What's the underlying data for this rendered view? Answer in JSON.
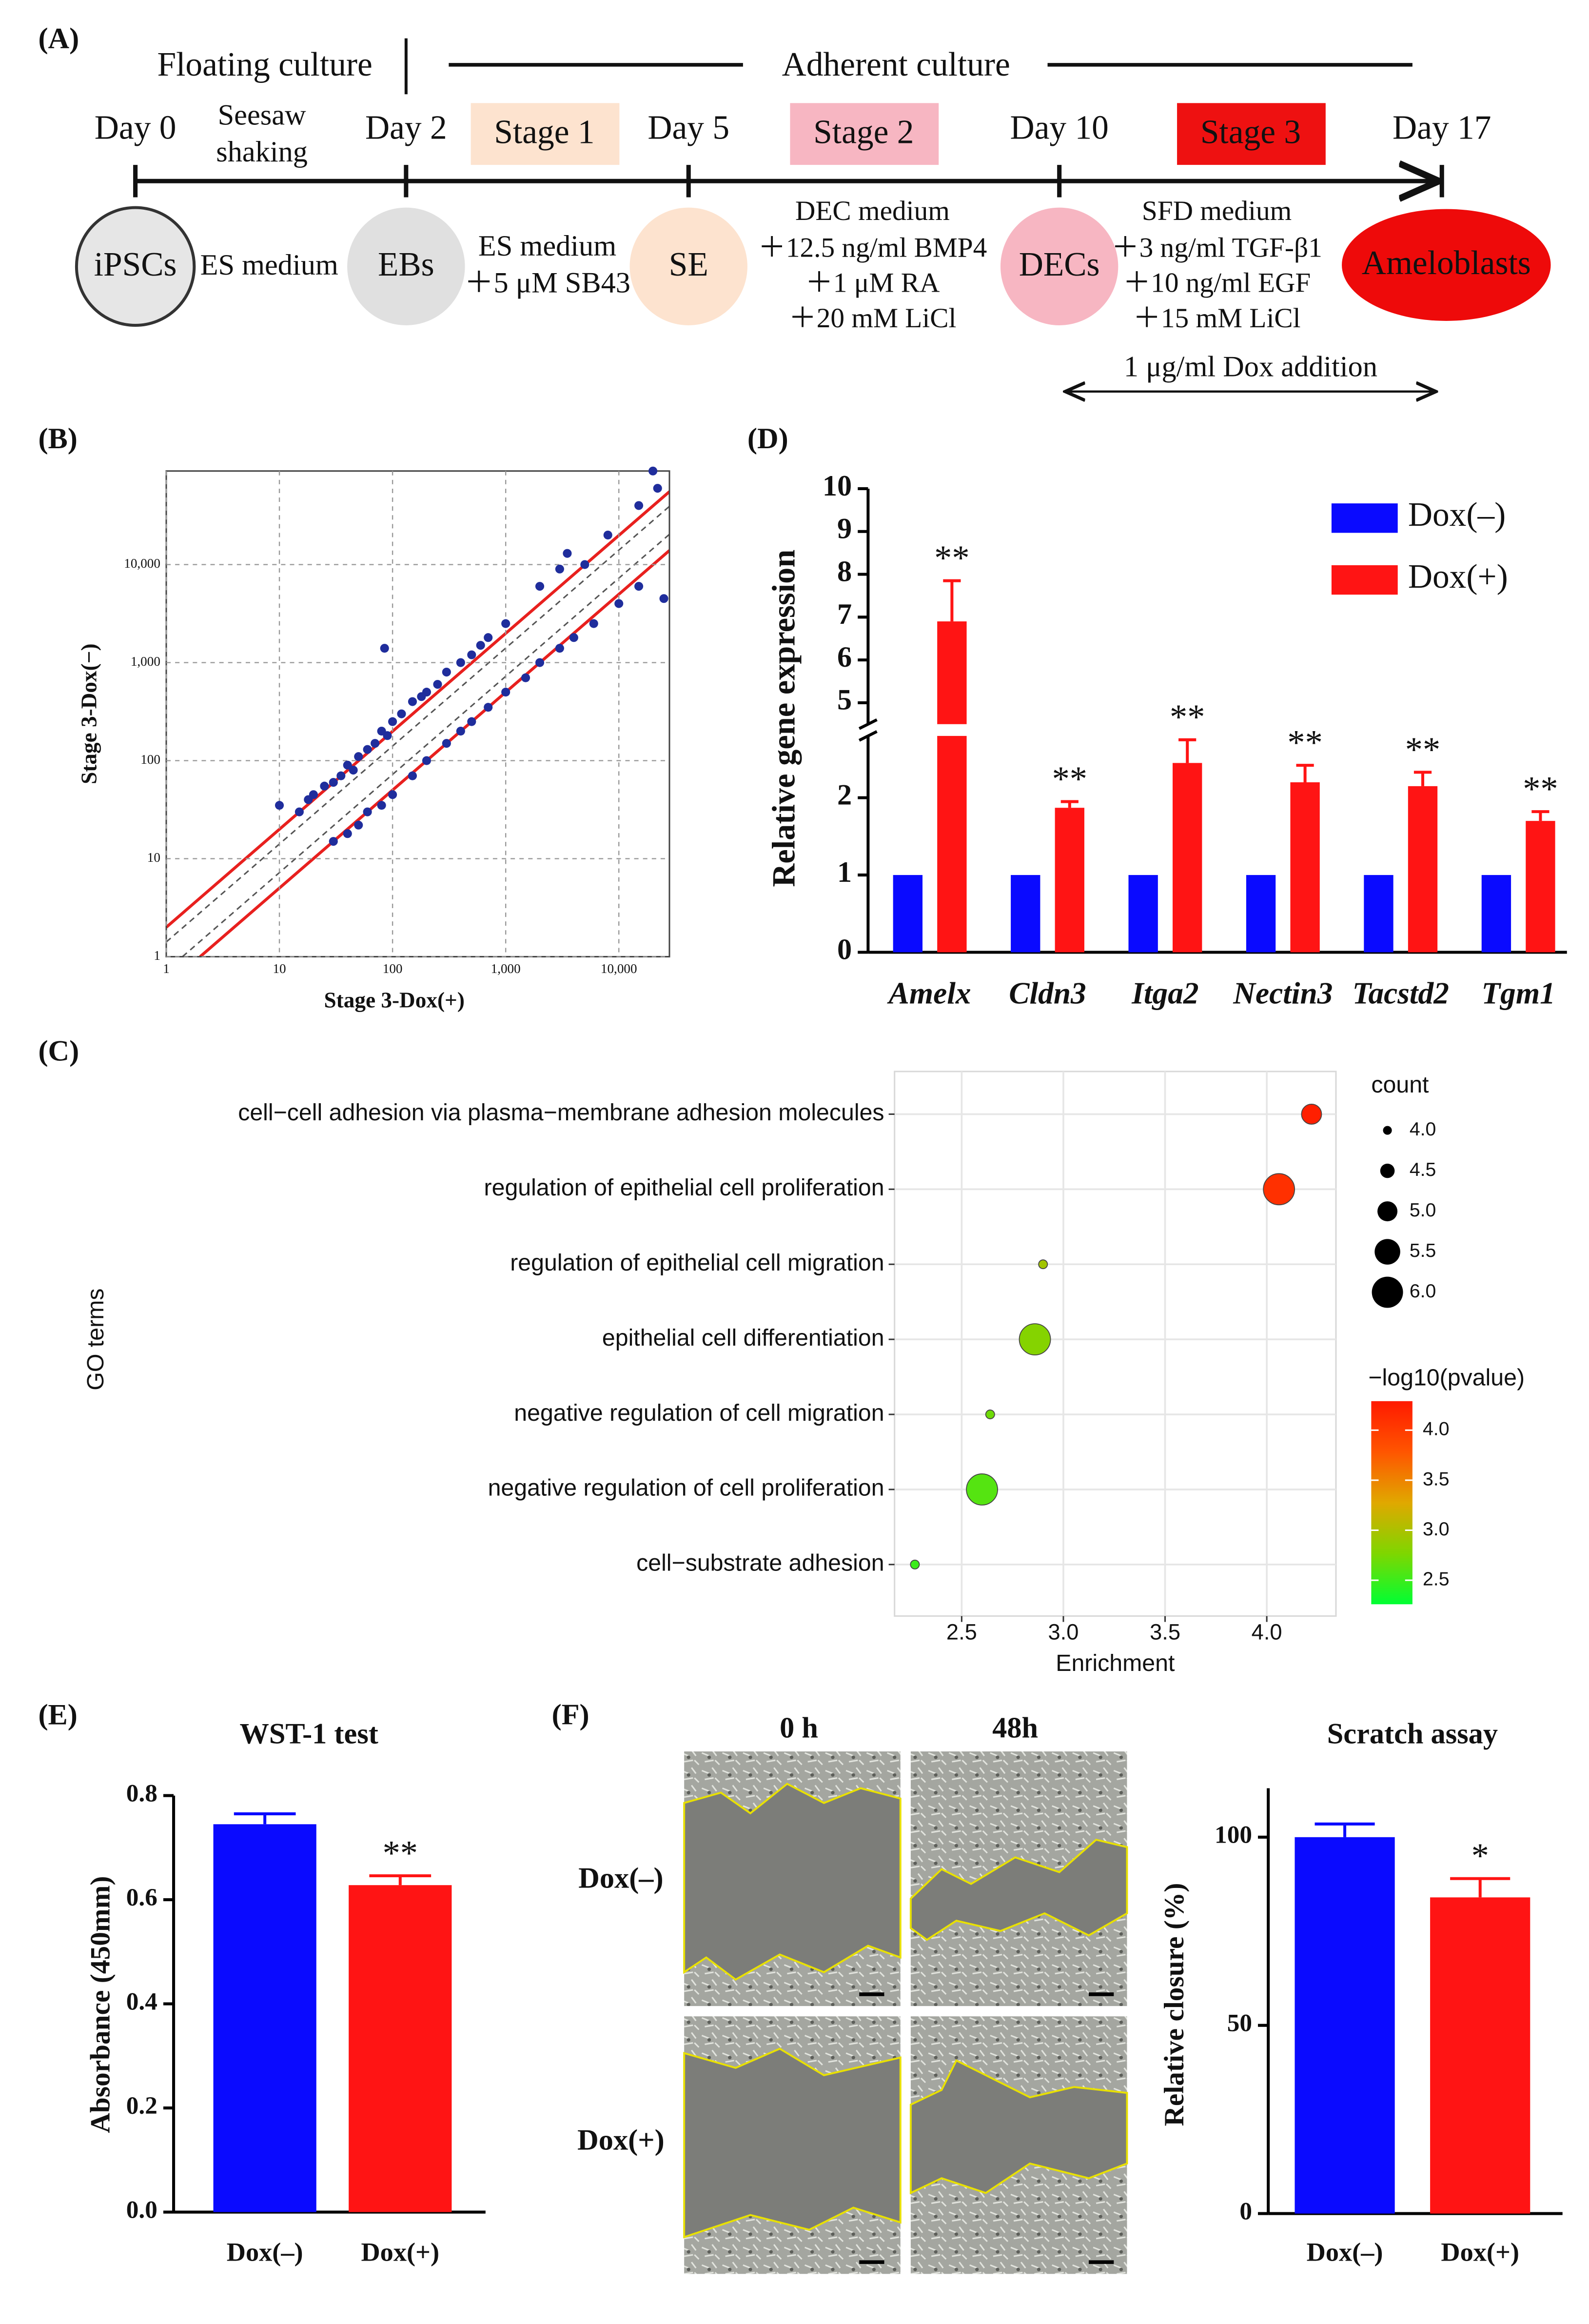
{
  "panel_a": {
    "label": "(A)",
    "floating": "Floating culture",
    "adherent": "Adherent culture",
    "days": [
      "Day 0",
      "Day 2",
      "Day 5",
      "Day 10",
      "Day 17"
    ],
    "shaking": [
      "Seesaw",
      "shaking"
    ],
    "stages": [
      "Stage 1",
      "Stage 2",
      "Stage 3"
    ],
    "nodes": [
      "iPSCs",
      "EBs",
      "SE",
      "DECs",
      "Ameloblasts"
    ],
    "media": [
      [
        "ES medium"
      ],
      [
        "ES medium",
        "＋5 μM SB43"
      ],
      [
        "DEC medium",
        "＋12.5 ng/ml BMP4",
        "＋1 μM RA",
        "＋20 mM LiCl"
      ],
      [
        "SFD medium",
        "＋3 ng/ml TGF-β1",
        "＋10 ng/ml EGF",
        "＋15 mM LiCl"
      ]
    ],
    "dox": "1 μg/ml Dox addition"
  },
  "panel_f": {
    "label": "(F)",
    "columns": [
      "0 h",
      "48h"
    ],
    "rows": [
      "Dox(–)",
      "Dox(+)"
    ]
  },
  "chart_data": [
    {
      "type": "scatter",
      "panel": "(B)",
      "xlabel": "Stage 3-Dox(+)",
      "ylabel": "Stage 3-Dox(−)",
      "log_x": true,
      "log_y": true,
      "grid": true,
      "color": "#1f2d9c",
      "xlim": [
        1,
        28000
      ],
      "ylim": [
        1,
        90000
      ],
      "xticks": [
        1,
        10,
        100,
        {
          "value": 1000,
          "label": "1,000"
        },
        {
          "value": 10000,
          "label": "10,000"
        }
      ],
      "yticks": [
        1,
        10,
        100,
        {
          "value": 1000,
          "label": "1,000"
        },
        {
          "value": 10000,
          "label": "10,000"
        }
      ],
      "x": [
        10,
        15,
        18,
        20,
        25,
        30,
        35,
        40,
        45,
        50,
        60,
        70,
        80,
        85,
        90,
        100,
        120,
        150,
        180,
        200,
        250,
        300,
        400,
        500,
        600,
        700,
        1000,
        2000,
        3000,
        3500,
        5000,
        8000,
        15000,
        20000,
        22000,
        30,
        40,
        50,
        60,
        80,
        100,
        150,
        200,
        300,
        400,
        500,
        700,
        1000,
        1500,
        2000,
        3000,
        4000,
        6000,
        10000,
        25000,
        15000
      ],
      "values": [
        35,
        30,
        40,
        45,
        55,
        60,
        70,
        90,
        80,
        110,
        130,
        150,
        200,
        1400,
        180,
        250,
        300,
        400,
        450,
        500,
        600,
        800,
        1000,
        1200,
        1500,
        1800,
        2500,
        6000,
        9000,
        13000,
        10000,
        20000,
        40000,
        90000,
        60000,
        15,
        18,
        22,
        30,
        35,
        45,
        70,
        100,
        150,
        200,
        250,
        350,
        500,
        700,
        1000,
        1400,
        1800,
        2500,
        4000,
        4500,
        6000
      ]
    },
    {
      "type": "dot",
      "panel": "(C)",
      "xlabel": "Enrichment",
      "ylabel": "GO terms",
      "grid": true,
      "categories": [
        "cell−cell adhesion via plasma−membrane adhesion molecules",
        "regulation of epithelial cell proliferation",
        "regulation of epithelial cell migration",
        "epithelial cell differentiation",
        "negative regulation of cell migration",
        "negative regulation of cell proliferation",
        "cell−substrate adhesion"
      ],
      "values": [
        4.22,
        4.06,
        2.9,
        2.86,
        2.64,
        2.6,
        2.27
      ],
      "count": [
        5,
        6,
        4,
        6,
        4,
        6,
        4
      ],
      "pvalue": [
        4.25,
        4.1,
        2.95,
        2.8,
        2.7,
        2.6,
        2.5
      ],
      "xlim": [
        2.17,
        4.34
      ],
      "xticks": [
        2.5,
        {
          "value": 3,
          "label": "3.0"
        },
        3.5,
        {
          "value": 4,
          "label": "4.0"
        }
      ],
      "size_legend_title": "count",
      "size_ticks": [
        {
          "value": 4,
          "label": "4.0"
        },
        4.5,
        {
          "value": 5,
          "label": "5.0"
        },
        5.5,
        {
          "value": 6,
          "label": "6.0"
        }
      ],
      "color_legend_title": "−log10(pvalue)",
      "clim": [
        2.26,
        4.29
      ],
      "cticks": [
        2.5,
        {
          "value": 3,
          "label": "3.0"
        },
        3.5,
        {
          "value": 4,
          "label": "4.0"
        }
      ],
      "colorscale": [
        "#00ff33",
        "#7fd600",
        "#e0a800",
        "#ff5500",
        "#ff1a00"
      ]
    },
    {
      "type": "bar",
      "panel": "(D)",
      "ylabel": "Relative gene expression",
      "legend": "upper right",
      "categories": [
        "Amelx",
        "Cldn3",
        "Itga2",
        "Nectin3",
        "Tacstd2",
        "Tgm1"
      ],
      "series": [
        {
          "name": "Dox(–)",
          "color": "#0a0aff",
          "values": [
            1,
            1,
            1,
            1,
            1,
            1
          ]
        },
        {
          "name": "Dox(+)",
          "color": "#ff1414",
          "values": [
            6.9,
            1.87,
            2.45,
            2.2,
            2.15,
            1.7
          ],
          "errors": [
            0.95,
            0.08,
            0.3,
            0.22,
            0.18,
            0.12
          ],
          "annotations": [
            "**",
            "**",
            "**",
            "**",
            "**",
            "**"
          ]
        }
      ],
      "ylim": [
        0,
        10
      ],
      "ybreak": [
        2.8,
        4.5
      ],
      "yticks": [
        0,
        1,
        2,
        5,
        6,
        7,
        8,
        9,
        10
      ]
    },
    {
      "type": "bar",
      "panel": "(E)",
      "title": "WST-1 test",
      "ylabel": "Absorbance (450mm)",
      "categories": [
        "Dox(–)",
        "Dox(+)"
      ],
      "values": [
        0.745,
        0.628
      ],
      "errors": [
        0.02,
        0.018
      ],
      "annotations": [
        null,
        "**"
      ],
      "colors": [
        "#0a0aff",
        "#ff1414"
      ],
      "ylim": [
        0,
        0.8
      ],
      "yticks": [
        {
          "value": 0,
          "label": "0.0"
        },
        0.2,
        0.4,
        0.6,
        0.8
      ]
    },
    {
      "type": "bar",
      "title": "Scratch assay",
      "ylabel": "Relative closure (%)",
      "categories": [
        "Dox(–)",
        "Dox(+)"
      ],
      "values": [
        100,
        84
      ],
      "errors": [
        3.5,
        5
      ],
      "annotations": [
        null,
        "*"
      ],
      "colors": [
        "#0a0aff",
        "#ff1414"
      ],
      "ylim": [
        0,
        113
      ],
      "yticks": [
        0,
        50,
        100
      ]
    }
  ]
}
